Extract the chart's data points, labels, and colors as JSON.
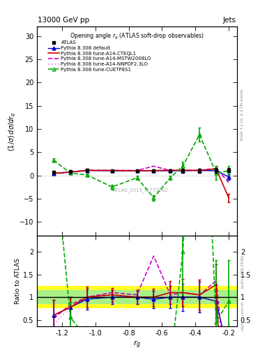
{
  "title_top": "13000 GeV pp",
  "title_right": "Jets",
  "plot_title": "Opening angle $r_g$ (ATLAS soft-drop observables)",
  "watermark": "ATLAS_2019_I1772062",
  "ylabel_main": "$(1/\\sigma)\\,d\\sigma/d\\,r_g$",
  "ylabel_ratio": "Ratio to ATLAS",
  "xlabel": "$r_g$",
  "right_label": "Rivet 3.1.10, ≥ 2.7M events",
  "arxiv_label": "[arXiv:1306.3436]",
  "mcplots_label": "mcplots.cern.ch",
  "xlim": [
    -1.35,
    -0.15
  ],
  "ylim_main": [
    -13,
    32
  ],
  "ylim_ratio": [
    0.35,
    2.35
  ],
  "yticks_main": [
    -10,
    -5,
    0,
    5,
    10,
    15,
    20,
    25,
    30
  ],
  "yticks_ratio": [
    0.5,
    1.0,
    1.5,
    2.0
  ],
  "xticks": [
    -1.2,
    -1.0,
    -0.8,
    -0.6,
    -0.4,
    -0.2
  ],
  "x": [
    -1.25,
    -1.15,
    -1.05,
    -0.9,
    -0.75,
    -0.65,
    -0.55,
    -0.475,
    -0.375,
    -0.275,
    -0.2
  ],
  "atlas_y": [
    0.75,
    0.9,
    1.1,
    1.0,
    1.0,
    1.05,
    1.0,
    1.0,
    1.05,
    1.1,
    1.1
  ],
  "atlas_yerr": [
    0.3,
    0.25,
    0.3,
    0.2,
    0.2,
    0.25,
    0.3,
    0.4,
    0.45,
    0.5,
    0.45
  ],
  "py_def_y": [
    0.45,
    0.7,
    1.05,
    1.0,
    1.0,
    1.0,
    1.0,
    1.0,
    1.05,
    1.0,
    -0.3
  ],
  "py_def_yerr": [
    0.25,
    0.2,
    0.25,
    0.15,
    0.15,
    0.2,
    0.25,
    0.3,
    0.35,
    0.4,
    0.6
  ],
  "cteql1_y": [
    0.45,
    0.7,
    1.1,
    1.05,
    1.0,
    1.05,
    1.1,
    1.1,
    1.1,
    1.4,
    -4.8
  ],
  "cteql1_yerr": [
    0.25,
    0.2,
    0.25,
    0.15,
    0.15,
    0.2,
    0.25,
    0.3,
    0.35,
    0.5,
    0.9
  ],
  "mstw_y": [
    0.4,
    0.75,
    1.1,
    1.1,
    1.05,
    2.0,
    1.05,
    1.1,
    1.1,
    1.5,
    -1.5
  ],
  "nnpdf_y": [
    0.3,
    0.7,
    1.05,
    1.05,
    1.0,
    1.0,
    1.05,
    1.0,
    1.05,
    1.05,
    -0.5
  ],
  "cuetp_y": [
    3.3,
    0.5,
    0.1,
    -2.5,
    -0.5,
    -4.8,
    -0.5,
    2.0,
    8.8,
    0.5,
    1.0
  ],
  "cuetp_yerr": [
    0.4,
    0.3,
    0.3,
    0.5,
    0.4,
    0.6,
    0.5,
    1.0,
    1.5,
    1.5,
    1.0
  ],
  "color_atlas": "#000000",
  "color_default": "#0000cc",
  "color_cteql1": "#cc0000",
  "color_mstw": "#cc00cc",
  "color_nnpdf": "#ff88ff",
  "color_cuetp": "#00aa00",
  "band_edges": [
    -1.35,
    -1.2,
    -1.1,
    -1.0,
    -0.85,
    -0.7,
    -0.6,
    -0.515,
    -0.415,
    -0.34,
    -0.25,
    -0.15
  ],
  "yellow_half": 0.25,
  "green_half": 0.15
}
